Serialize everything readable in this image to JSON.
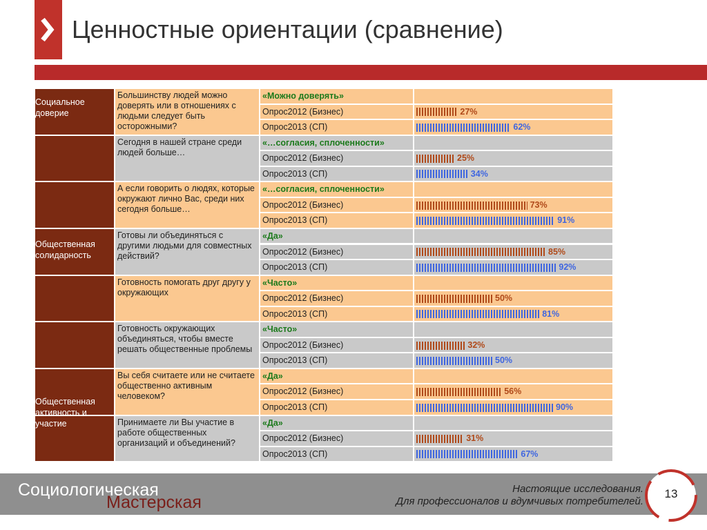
{
  "header": {
    "title": "Ценностные ориентации (сравнение)"
  },
  "table": {
    "sections": [
      {
        "label": "Социальное доверие"
      },
      {
        "label": "Общественная солидарность"
      },
      {
        "label": "Общественная активность и участие"
      }
    ],
    "groups": [
      {
        "question": "Большинству людей можно доверять или в отношениях с людьми следует быть осторожными?",
        "answer": "«Можно доверять»",
        "rows": [
          {
            "survey": "Опрос2012 (Бизнес)",
            "value": 27,
            "label": "27%"
          },
          {
            "survey": "Опрос2013 (СП)",
            "value": 62,
            "label": "62%"
          }
        ]
      },
      {
        "question": "Сегодня в нашей стране среди людей больше…",
        "answer": "«…согласия, сплоченности»",
        "rows": [
          {
            "survey": "Опрос2012 (Бизнес)",
            "value": 25,
            "label": "25%"
          },
          {
            "survey": "Опрос2013 (СП)",
            "value": 34,
            "label": "34%"
          }
        ]
      },
      {
        "question": "А если говорить о людях, которые окружают лично Вас, среди них сегодня больше…",
        "answer": "«…согласия, сплоченности»",
        "rows": [
          {
            "survey": "Опрос2012 (Бизнес)",
            "value": 73,
            "label": "73%"
          },
          {
            "survey": "Опрос2013 (СП)",
            "value": 91,
            "label": "91%"
          }
        ]
      },
      {
        "question": "Готовы ли объединяться с другими людьми для совместных действий?",
        "answer": "«Да»",
        "rows": [
          {
            "survey": "Опрос2012 (Бизнес)",
            "value": 85,
            "label": "85%"
          },
          {
            "survey": "Опрос2013 (СП)",
            "value": 92,
            "label": "92%"
          }
        ]
      },
      {
        "question": "Готовность помогать друг другу у окружающих",
        "answer": "«Часто»",
        "rows": [
          {
            "survey": "Опрос2012 (Бизнес)",
            "value": 50,
            "label": "50%"
          },
          {
            "survey": "Опрос2013 (СП)",
            "value": 81,
            "label": "81%"
          }
        ]
      },
      {
        "question": "Готовность окружающих объединяться, чтобы вместе решать общественные проблемы",
        "answer": "«Часто»",
        "rows": [
          {
            "survey": "Опрос2012 (Бизнес)",
            "value": 32,
            "label": "32%"
          },
          {
            "survey": "Опрос2013 (СП)",
            "value": 50,
            "label": "50%"
          }
        ]
      },
      {
        "question": "Вы себя считаете или не считаете общественно активным человеком?",
        "answer": "«Да»",
        "rows": [
          {
            "survey": "Опрос2012 (Бизнес)",
            "value": 56,
            "label": "56%"
          },
          {
            "survey": "Опрос2013 (СП)",
            "value": 90,
            "label": "90%"
          }
        ]
      },
      {
        "question": "Принимаете ли Вы участие в работе общественных организаций и объединений?",
        "answer": "«Да»",
        "rows": [
          {
            "survey": "Опрос2012 (Бизнес)",
            "value": 31,
            "label": "31%"
          },
          {
            "survey": "Опрос2013 (СП)",
            "value": 67,
            "label": "67%"
          }
        ]
      }
    ]
  },
  "footer": {
    "brand_line1": "Социологическая",
    "brand_line2": "Мастерская",
    "tagline_1": "Настоящие исследования.",
    "tagline_2": "Для профессионалов и вдумчивых потребителей.",
    "page": "13"
  }
}
